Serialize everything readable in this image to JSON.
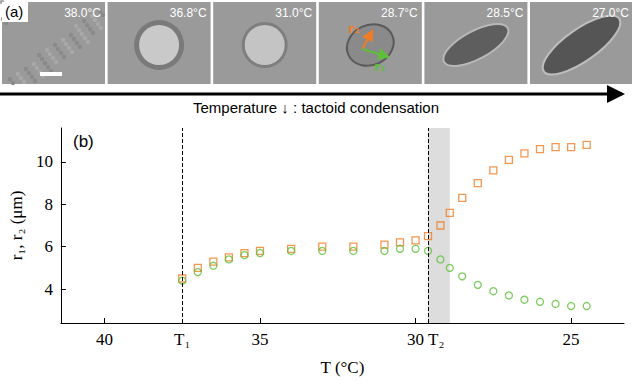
{
  "panel_a": {
    "label": "(a)",
    "frames": [
      {
        "temperature": "38.0°C"
      },
      {
        "temperature": "36.8°C"
      },
      {
        "temperature": "31.0°C"
      },
      {
        "temperature": "28.7°C"
      },
      {
        "temperature": "28.5°C"
      },
      {
        "temperature": "27.0°C"
      }
    ],
    "vectors": [
      {
        "label": "r₂",
        "color": "#f07d24"
      },
      {
        "label": "r₁",
        "color": "#5fbf3a"
      }
    ],
    "arrow_text": "Temperature ↓ : tactoid condensation"
  },
  "chart_data": {
    "type": "scatter",
    "panel_label": "(b)",
    "x_label": "T (°C)",
    "y_label": "r₁, r₂ (μm)",
    "xlim": [
      41.4,
      23.3
    ],
    "xticks": [
      40,
      35,
      30,
      25
    ],
    "ylim": [
      2.4,
      11.6
    ],
    "yticks": [
      4,
      6,
      8,
      10
    ],
    "grid": false,
    "vlines": [
      {
        "x": 37.5,
        "label": "T₁"
      },
      {
        "x": 29.6,
        "label": "T₂"
      }
    ],
    "shaded_band": [
      29.6,
      28.9
    ],
    "series": [
      {
        "name": "r₂",
        "color": "#f07d24",
        "marker": "square",
        "x": [
          37.5,
          37.0,
          36.5,
          36.0,
          35.5,
          35.0,
          34.0,
          33.0,
          32.0,
          31.0,
          30.5,
          30.0,
          29.6,
          29.2,
          28.9,
          28.5,
          28.0,
          27.5,
          27.0,
          26.5,
          26.0,
          25.5,
          25.0,
          24.5
        ],
        "values": [
          4.5,
          5.0,
          5.3,
          5.5,
          5.7,
          5.8,
          5.9,
          6.0,
          6.0,
          6.1,
          6.2,
          6.3,
          6.5,
          7.0,
          7.6,
          8.3,
          9.0,
          9.6,
          10.1,
          10.4,
          10.6,
          10.7,
          10.7,
          10.8
        ]
      },
      {
        "name": "r₁",
        "color": "#5fbf3a",
        "marker": "circle",
        "x": [
          37.5,
          37.0,
          36.5,
          36.0,
          35.5,
          35.0,
          34.0,
          33.0,
          32.0,
          31.0,
          30.5,
          30.0,
          29.6,
          29.2,
          28.9,
          28.5,
          28.0,
          27.5,
          27.0,
          26.5,
          26.0,
          25.5,
          25.0,
          24.5
        ],
        "values": [
          4.4,
          4.8,
          5.1,
          5.4,
          5.6,
          5.7,
          5.8,
          5.8,
          5.8,
          5.8,
          5.9,
          5.9,
          5.8,
          5.4,
          5.0,
          4.6,
          4.2,
          3.9,
          3.7,
          3.5,
          3.4,
          3.3,
          3.2,
          3.2
        ]
      }
    ]
  }
}
